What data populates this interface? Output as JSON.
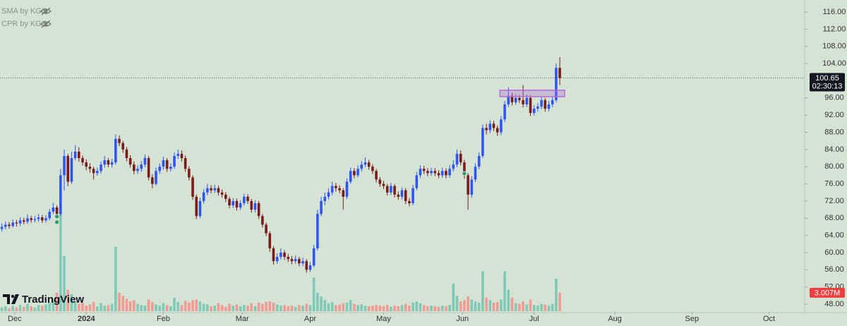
{
  "chart_data": {
    "type": "candlestick",
    "indicators": [
      "SMA by KGS",
      "CPR by KGS"
    ],
    "watermark": "TradingView",
    "last_price": 100.65,
    "countdown": "02:30:13",
    "last_volume": {
      "value": 3.007,
      "label": "3.007M"
    },
    "up_color": "#3056f2",
    "down_color": "#7a1c1c",
    "volume_up_color": "#7fc9b6",
    "volume_down_color": "#f19b94",
    "ylim": [
      46.2,
      118.8
    ],
    "yticks": [
      {
        "value": 48,
        "label": "48.00"
      },
      {
        "value": 52,
        "label": "52.00"
      },
      {
        "value": 56,
        "label": "56.00"
      },
      {
        "value": 60,
        "label": "60.00"
      },
      {
        "value": 64,
        "label": "64.00"
      },
      {
        "value": 68,
        "label": "68.00"
      },
      {
        "value": 72,
        "label": "72.00"
      },
      {
        "value": 76,
        "label": "76.00"
      },
      {
        "value": 80,
        "label": "80.00"
      },
      {
        "value": 84,
        "label": "84.00"
      },
      {
        "value": 88,
        "label": "88.00"
      },
      {
        "value": 92,
        "label": "92.00"
      },
      {
        "value": 96,
        "label": "96.00"
      },
      {
        "value": 104,
        "label": "104.00"
      },
      {
        "value": 108,
        "label": "108.00"
      },
      {
        "value": 112,
        "label": "112.00"
      },
      {
        "value": 116,
        "label": "116.00"
      }
    ],
    "xlim": [
      -0.5,
      218.7
    ],
    "xticks": [
      {
        "value": 3.5,
        "label": "Dec"
      },
      {
        "value": 23,
        "label": "2024"
      },
      {
        "value": 44,
        "label": "Feb"
      },
      {
        "value": 65.5,
        "label": "Mar"
      },
      {
        "value": 84,
        "label": "Apr"
      },
      {
        "value": 104,
        "label": "May"
      },
      {
        "value": 125.5,
        "label": "Jun"
      },
      {
        "value": 145,
        "label": "Jul"
      },
      {
        "value": 167,
        "label": "Aug"
      },
      {
        "value": 188,
        "label": "Sep"
      },
      {
        "value": 209,
        "label": "Oct"
      }
    ],
    "volume_ylim": [
      0,
      16
    ],
    "zone": {
      "x": [
        135.7,
        153.3
      ],
      "y": [
        96.3,
        97.8
      ],
      "color": "#b36bd6"
    },
    "signals": [
      {
        "x": 15,
        "y": 68.4
      },
      {
        "x": 15,
        "y": 67.1
      },
      {
        "x": 126,
        "y": 78.4
      }
    ],
    "open": [
      65.5,
      66.0,
      66.5,
      66.2,
      67.0,
      66.8,
      67.5,
      67.2,
      68.0,
      67.6,
      67.8,
      68.2,
      67.5,
      68.0,
      69.5,
      70.5,
      69.0,
      78.0,
      82.5,
      76.5,
      82.0,
      83.5,
      82.0,
      81.0,
      80.0,
      79.5,
      78.5,
      79.0,
      80.5,
      81.5,
      80.5,
      81.0,
      86.5,
      85.5,
      84.0,
      82.0,
      80.5,
      79.0,
      79.5,
      80.5,
      82.0,
      77.5,
      76.0,
      79.0,
      80.0,
      81.5,
      79.5,
      80.0,
      82.5,
      83.0,
      82.0,
      79.5,
      77.5,
      73.0,
      68.5,
      72.0,
      74.0,
      75.0,
      74.5,
      75.0,
      74.0,
      73.5,
      72.5,
      71.0,
      72.0,
      70.5,
      71.5,
      73.0,
      72.0,
      70.0,
      71.5,
      68.5,
      66.5,
      64.5,
      61.0,
      58.0,
      59.0,
      60.0,
      59.0,
      58.5,
      58.0,
      58.5,
      57.5,
      58.0,
      56.0,
      57.0,
      61.0,
      69.0,
      72.0,
      73.0,
      74.0,
      75.5,
      75.0,
      74.5,
      73.0,
      76.5,
      79.0,
      78.0,
      79.5,
      80.5,
      81.0,
      80.0,
      79.0,
      77.0,
      76.0,
      75.5,
      74.0,
      75.5,
      73.5,
      73.0,
      74.5,
      72.0,
      71.5,
      75.0,
      78.0,
      79.5,
      79.0,
      78.5,
      79.0,
      78.5,
      78.0,
      79.0,
      78.0,
      79.5,
      80.5,
      83.0,
      81.0,
      78.0,
      73.5,
      77.0,
      80.0,
      82.5,
      89.0,
      88.5,
      90.0,
      89.0,
      88.0,
      91.0,
      94.5,
      96.5,
      95.0,
      96.0,
      95.5,
      94.5,
      96.0,
      92.5,
      93.5,
      94.0,
      95.5,
      93.5,
      94.5,
      95.5,
      103.0
    ],
    "high": [
      66.8,
      67.2,
      67.1,
      67.7,
      67.6,
      68.2,
      68.1,
      68.9,
      68.6,
      68.5,
      69.0,
      68.8,
      68.7,
      70.2,
      71.6,
      71.0,
      79.5,
      84.0,
      83.0,
      83.5,
      85.0,
      84.5,
      82.6,
      81.7,
      80.8,
      80.0,
      79.8,
      81.2,
      82.5,
      82.0,
      81.8,
      87.5,
      87.3,
      86.0,
      84.6,
      82.7,
      81.2,
      80.3,
      81.3,
      82.8,
      82.5,
      78.2,
      79.8,
      80.7,
      82.3,
      82.0,
      80.8,
      83.3,
      84.0,
      83.8,
      82.6,
      80.1,
      78.0,
      73.5,
      72.8,
      74.8,
      76.0,
      75.7,
      75.8,
      75.6,
      74.7,
      74.1,
      73.0,
      72.7,
      72.6,
      72.2,
      73.7,
      73.6,
      72.5,
      72.2,
      72.0,
      69.0,
      67.0,
      65.0,
      61.5,
      59.8,
      61.0,
      60.6,
      59.7,
      59.2,
      59.3,
      59.0,
      58.8,
      58.5,
      57.8,
      61.8,
      70.0,
      73.0,
      74.0,
      75.0,
      76.5,
      76.2,
      75.7,
      75.0,
      77.3,
      79.8,
      79.7,
      80.3,
      81.3,
      82.2,
      81.6,
      80.6,
      79.5,
      77.6,
      76.7,
      76.0,
      76.2,
      76.0,
      74.2,
      75.2,
      75.0,
      72.7,
      75.8,
      78.8,
      80.3,
      80.2,
      79.7,
      79.8,
      79.7,
      79.2,
      79.8,
      79.6,
      80.3,
      81.5,
      84.0,
      83.8,
      81.6,
      78.5,
      77.8,
      80.8,
      83.3,
      89.8,
      90.0,
      90.8,
      90.7,
      89.6,
      91.8,
      95.3,
      98.5,
      97.2,
      96.8,
      96.7,
      99.0,
      96.8,
      96.6,
      94.3,
      94.8,
      96.3,
      96.0,
      95.3,
      96.3,
      104.0,
      105.5
    ],
    "low": [
      64.9,
      65.4,
      65.6,
      65.8,
      66.1,
      66.2,
      66.6,
      66.7,
      67.0,
      67.0,
      67.2,
      66.9,
      67.0,
      67.5,
      69.0,
      68.0,
      68.5,
      74.5,
      75.5,
      76.0,
      81.5,
      81.2,
      80.3,
      79.2,
      78.6,
      77.0,
      77.9,
      78.4,
      79.8,
      79.9,
      79.8,
      80.5,
      84.8,
      83.2,
      81.2,
      79.8,
      78.2,
      78.3,
      78.8,
      79.9,
      76.8,
      75.0,
      75.6,
      78.3,
      79.3,
      78.8,
      78.9,
      79.5,
      81.8,
      81.2,
      78.8,
      76.8,
      72.3,
      67.8,
      68.0,
      71.4,
      73.4,
      73.8,
      73.9,
      73.3,
      72.8,
      71.8,
      70.3,
      70.4,
      69.8,
      69.9,
      70.9,
      71.3,
      69.3,
      69.4,
      67.8,
      65.8,
      63.8,
      60.2,
      57.2,
      57.4,
      58.4,
      58.3,
      57.8,
      57.3,
      57.4,
      56.8,
      56.9,
      55.3,
      55.5,
      56.6,
      60.5,
      68.5,
      71.0,
      72.4,
      73.4,
      74.2,
      73.8,
      70.0,
      72.5,
      76.0,
      77.3,
      77.5,
      78.9,
      79.9,
      79.3,
      78.3,
      76.3,
      75.3,
      74.8,
      73.3,
      73.4,
      72.8,
      72.3,
      72.4,
      71.3,
      70.8,
      71.0,
      74.5,
      77.4,
      78.3,
      77.8,
      77.9,
      77.8,
      77.3,
      77.4,
      77.3,
      77.4,
      78.9,
      79.9,
      80.3,
      77.2,
      70.0,
      72.8,
      76.4,
      79.4,
      82.0,
      87.5,
      87.8,
      88.3,
      87.2,
      87.4,
      90.4,
      93.9,
      94.3,
      94.4,
      94.8,
      93.8,
      93.9,
      91.8,
      91.9,
      92.8,
      93.4,
      92.8,
      92.9,
      93.9,
      95.0,
      99.0
    ],
    "close": [
      66.0,
      66.5,
      66.2,
      67.0,
      66.8,
      67.5,
      67.2,
      68.0,
      67.6,
      67.8,
      68.2,
      67.5,
      68.0,
      69.5,
      70.5,
      69.0,
      78.0,
      82.5,
      76.5,
      82.0,
      83.5,
      82.0,
      81.0,
      80.0,
      79.5,
      78.5,
      79.0,
      80.5,
      81.5,
      80.5,
      81.0,
      86.5,
      85.5,
      84.0,
      82.0,
      80.5,
      79.0,
      79.5,
      80.5,
      82.0,
      77.5,
      76.0,
      79.0,
      80.0,
      81.5,
      79.5,
      80.0,
      82.5,
      83.0,
      82.0,
      79.5,
      77.5,
      73.0,
      68.5,
      72.0,
      74.0,
      75.0,
      74.5,
      75.0,
      74.0,
      73.5,
      72.5,
      71.0,
      72.0,
      70.5,
      71.5,
      73.0,
      72.0,
      70.0,
      71.5,
      68.5,
      66.5,
      64.5,
      61.0,
      58.0,
      59.0,
      60.0,
      59.0,
      58.5,
      58.0,
      58.5,
      57.5,
      58.0,
      56.0,
      57.0,
      61.0,
      69.0,
      72.0,
      73.0,
      74.0,
      75.5,
      75.0,
      74.5,
      73.0,
      76.5,
      79.0,
      78.0,
      79.5,
      80.5,
      81.0,
      80.0,
      79.0,
      77.0,
      76.0,
      75.5,
      74.0,
      75.5,
      73.5,
      73.0,
      74.5,
      72.0,
      71.5,
      75.0,
      78.0,
      79.5,
      79.0,
      78.5,
      79.0,
      78.5,
      78.0,
      79.0,
      78.0,
      79.5,
      80.5,
      83.0,
      81.0,
      78.0,
      73.5,
      77.0,
      80.0,
      82.5,
      89.0,
      88.5,
      90.0,
      89.0,
      88.0,
      91.0,
      94.5,
      96.5,
      95.0,
      96.0,
      95.5,
      94.5,
      96.0,
      92.5,
      93.5,
      94.0,
      95.5,
      93.5,
      94.5,
      95.5,
      103.0,
      100.65
    ],
    "volume": [
      0.6,
      0.8,
      0.5,
      0.9,
      0.6,
      1.0,
      0.7,
      1.2,
      0.8,
      0.6,
      1.0,
      0.9,
      1.1,
      1.4,
      1.8,
      3.0,
      16.0,
      9.0,
      3.5,
      2.8,
      1.6,
      1.2,
      1.4,
      0.9,
      1.1,
      1.5,
      0.8,
      1.3,
      0.9,
      1.0,
      1.2,
      10.5,
      3.0,
      2.5,
      2.0,
      1.6,
      1.8,
      1.2,
      1.0,
      0.9,
      1.9,
      1.5,
      1.1,
      0.9,
      1.3,
      1.0,
      0.8,
      2.2,
      1.5,
      1.0,
      1.7,
      1.4,
      1.8,
      1.9,
      1.6,
      1.2,
      1.1,
      0.8,
      0.9,
      1.3,
      1.0,
      0.7,
      1.2,
      0.9,
      1.1,
      0.8,
      1.0,
      0.9,
      1.3,
      0.8,
      1.4,
      1.2,
      1.5,
      1.6,
      1.4,
      1.1,
      0.9,
      1.0,
      0.8,
      0.9,
      0.7,
      1.0,
      0.9,
      1.2,
      1.0,
      5.5,
      3.0,
      2.4,
      1.8,
      1.3,
      1.5,
      1.0,
      1.1,
      1.3,
      1.4,
      1.8,
      1.2,
      1.0,
      1.1,
      0.9,
      0.8,
      0.9,
      1.0,
      0.9,
      0.8,
      1.0,
      0.7,
      0.9,
      0.8,
      1.0,
      1.2,
      0.9,
      1.4,
      1.6,
      1.3,
      1.0,
      0.8,
      0.9,
      0.8,
      0.7,
      0.9,
      0.8,
      1.0,
      4.5,
      2.5,
      1.6,
      1.8,
      2.4,
      1.9,
      1.6,
      1.4,
      6.5,
      2.2,
      1.8,
      1.4,
      1.5,
      1.9,
      6.5,
      3.5,
      2.2,
      1.3,
      1.2,
      1.6,
      1.1,
      1.9,
      1.0,
      0.9,
      1.2,
      1.1,
      0.9,
      1.2,
      5.3,
      3.007
    ]
  }
}
